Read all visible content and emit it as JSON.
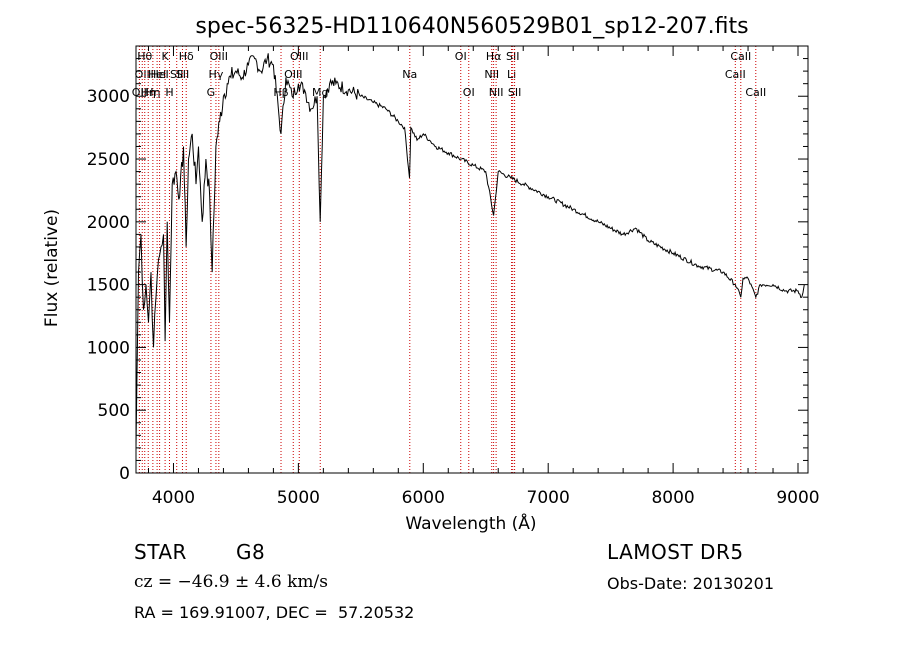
{
  "chart_data": {
    "type": "line",
    "title": "spec-56325-HD110640N560529B01_sp12-207.fits",
    "xlabel": "Wavelength (Å)",
    "ylabel": "Flux (relative)",
    "xlim": [
      3700,
      9080
    ],
    "ylim": [
      0,
      3400
    ],
    "xticks": [
      4000,
      5000,
      6000,
      7000,
      8000,
      9000
    ],
    "yticks": [
      0,
      500,
      1000,
      1500,
      2000,
      2500,
      3000
    ],
    "grid": false,
    "line_color": "#000000",
    "marker_color": "#cc0000",
    "series": [
      {
        "x": [
          3700,
          3720,
          3740,
          3760,
          3780,
          3800,
          3820,
          3840,
          3860,
          3880,
          3900,
          3920,
          3933,
          3950,
          3968,
          3990,
          4020,
          4050,
          4080,
          4101,
          4120,
          4150,
          4180,
          4200,
          4230,
          4260,
          4290,
          4310,
          4340,
          4370,
          4400,
          4430,
          4460,
          4500,
          4550,
          4600,
          4650,
          4700,
          4750,
          4800,
          4861,
          4900,
          4950,
          5000,
          5050,
          5100,
          5150,
          5175,
          5200,
          5250,
          5300,
          5400,
          5500,
          5600,
          5700,
          5800,
          5850,
          5890,
          5900,
          5950,
          6000,
          6050,
          6100,
          6200,
          6300,
          6400,
          6500,
          6563,
          6600,
          6700,
          6800,
          7000,
          7200,
          7400,
          7600,
          7700,
          7800,
          8000,
          8200,
          8400,
          8498,
          8542,
          8560,
          8600,
          8662,
          8700,
          8800,
          8900,
          9000,
          9030,
          9050
        ],
        "y": [
          200,
          1600,
          1900,
          1300,
          1500,
          1200,
          1600,
          1000,
          1400,
          1700,
          1800,
          1900,
          1050,
          2000,
          1200,
          2300,
          2400,
          2200,
          2600,
          1800,
          2500,
          2700,
          2300,
          2600,
          2000,
          2500,
          2200,
          1600,
          2600,
          2800,
          3000,
          3100,
          3150,
          3200,
          3150,
          3250,
          3300,
          3200,
          3300,
          3250,
          2700,
          3150,
          3000,
          3100,
          3050,
          2900,
          3000,
          2000,
          3000,
          3100,
          3100,
          3050,
          3000,
          2950,
          2900,
          2800,
          2750,
          2350,
          2750,
          2650,
          2700,
          2650,
          2600,
          2550,
          2500,
          2450,
          2400,
          2050,
          2400,
          2350,
          2300,
          2200,
          2100,
          2000,
          1900,
          1950,
          1850,
          1750,
          1650,
          1600,
          1500,
          1400,
          1550,
          1550,
          1400,
          1500,
          1500,
          1450,
          1450,
          1400,
          1500
        ]
      }
    ],
    "lines": [
      {
        "x": 3727,
        "label": "OII",
        "row": 2
      },
      {
        "x": 3750,
        "label": "OII",
        "row": 1
      },
      {
        "x": 3770,
        "label": "Hθ",
        "row": 0
      },
      {
        "x": 3798,
        "label": "Hη",
        "row": 2
      },
      {
        "x": 3835,
        "label": "Hη",
        "row": 2
      },
      {
        "x": 3869,
        "label": "HeI",
        "row": 1
      },
      {
        "x": 3889,
        "label": "HeI",
        "row": 1
      },
      {
        "x": 3933,
        "label": "K",
        "row": 0
      },
      {
        "x": 3968,
        "label": "H",
        "row": 2
      },
      {
        "x": 4026,
        "label": "SII",
        "row": 1
      },
      {
        "x": 4072,
        "label": "SII",
        "row": 1
      },
      {
        "x": 4102,
        "label": "Hδ",
        "row": 0
      },
      {
        "x": 4300,
        "label": "G",
        "row": 2
      },
      {
        "x": 4340,
        "label": "Hγ",
        "row": 1
      },
      {
        "x": 4363,
        "label": "OIII",
        "row": 0
      },
      {
        "x": 4861,
        "label": "Hβ",
        "row": 2
      },
      {
        "x": 4959,
        "label": "OIII",
        "row": 1
      },
      {
        "x": 5007,
        "label": "OIII",
        "row": 0
      },
      {
        "x": 5175,
        "label": "Mg",
        "row": 2
      },
      {
        "x": 5892,
        "label": "Na",
        "row": 1
      },
      {
        "x": 6300,
        "label": "OI",
        "row": 0
      },
      {
        "x": 6364,
        "label": "OI",
        "row": 2
      },
      {
        "x": 6548,
        "label": "NII",
        "row": 1
      },
      {
        "x": 6563,
        "label": "Hα",
        "row": 0
      },
      {
        "x": 6583,
        "label": "NII",
        "row": 2
      },
      {
        "x": 6707,
        "label": "Li",
        "row": 1
      },
      {
        "x": 6716,
        "label": "SII",
        "row": 0
      },
      {
        "x": 6731,
        "label": "SII",
        "row": 2
      },
      {
        "x": 8498,
        "label": "CaII",
        "row": 1
      },
      {
        "x": 8542,
        "label": "CaII",
        "row": 0
      },
      {
        "x": 8662,
        "label": "CaII",
        "row": 2
      }
    ]
  },
  "info": {
    "object_class": "STAR",
    "subclass": "G8",
    "survey": "LAMOST DR5",
    "velocity": "cz = −46.9 ± 4.6 km/s",
    "obs_date": "Obs-Date: 20130201",
    "coords": "RA = 169.91007, DEC =  57.20532"
  }
}
